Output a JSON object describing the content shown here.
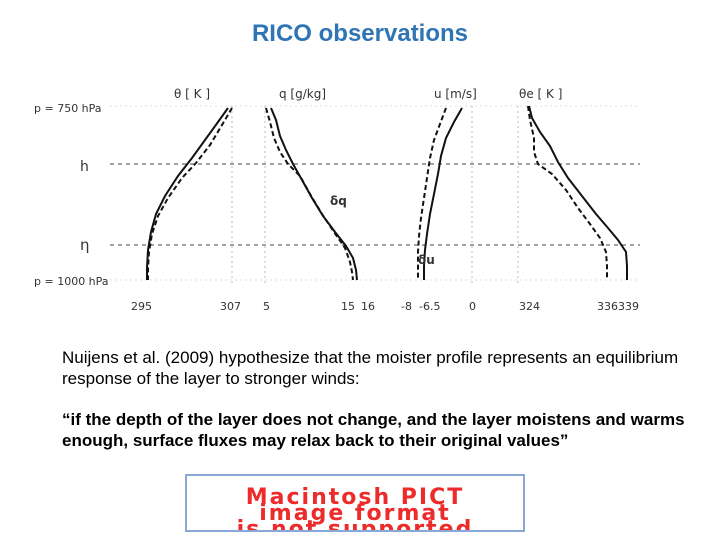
{
  "title": "RICO observations",
  "title_color": "#2f74b5",
  "figure": {
    "pressure_top": "p = 750 hPa",
    "pressure_bottom": "p = 1000 hPa",
    "level_h": "h",
    "level_eta": "η",
    "panels": [
      {
        "header": "θ [ K ]",
        "tick_left": "295",
        "tick_right": "307",
        "delta_label": ""
      },
      {
        "header": "q [g/kg]",
        "tick_left": "5",
        "tick_mid": "15",
        "tick_right": "16",
        "delta_label": "δq"
      },
      {
        "header": "u [m/s]",
        "tick_left": "-8",
        "tick_mid": "-6.5",
        "tick_right": "0",
        "delta_label": "δu"
      },
      {
        "header": "θe [ K ]",
        "tick_left": "324",
        "tick_mid": "336",
        "tick_right": "339",
        "delta_label": ""
      }
    ]
  },
  "caption": "Nuijens et al. (2009) hypothesize that the moister profile represents an equilibrium response of the layer to stronger winds:",
  "quote": "“if the depth of the layer does not change, and the layer moistens and warms enough, surface fluxes may relax back to their original values”",
  "pict_placeholder": {
    "line1": "Macintosh PICT",
    "line2": "image format",
    "line3": "is not supported",
    "color": "#ee2b2b"
  }
}
